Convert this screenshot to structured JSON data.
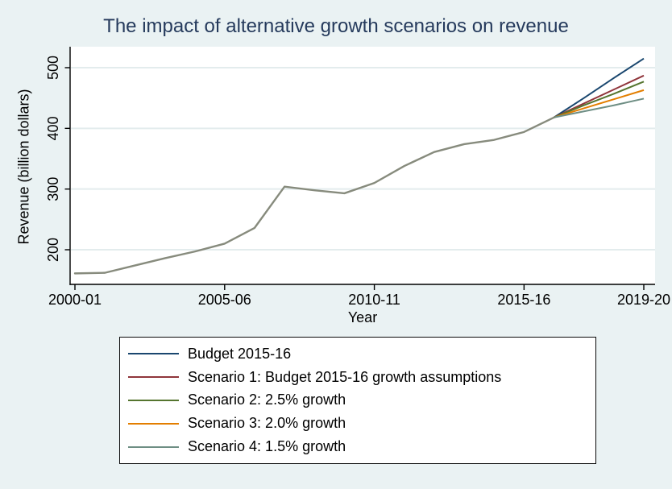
{
  "figure": {
    "background_color": "#eaf2f3",
    "title_color": "#253a5c"
  },
  "chart_data": {
    "type": "line",
    "title": "The impact of alternative growth scenarios on revenue",
    "xlabel": "Year",
    "ylabel": "Revenue (billion dollars)",
    "x_tick_labels": [
      "2000-01",
      "2005-06",
      "2010-11",
      "2015-16",
      "2019-20"
    ],
    "y_ticks": [
      200,
      300,
      400,
      500
    ],
    "ylim": [
      143,
      535
    ],
    "grid": true,
    "grid_color": "#e3eced",
    "legend_position": "below",
    "years": [
      "2000-01",
      "2001-02",
      "2002-03",
      "2003-04",
      "2004-05",
      "2005-06",
      "2006-07",
      "2007-08",
      "2008-09",
      "2009-10",
      "2010-11",
      "2011-12",
      "2012-13",
      "2013-14",
      "2014-15",
      "2015-16",
      "2016-17",
      "2017-18",
      "2018-19",
      "2019-20"
    ],
    "history_note": "All five series share identical values from 2000-01 to 2016-17, then diverge",
    "history_color": "#878b7d",
    "history_years": [
      "2000-01",
      "2001-02",
      "2002-03",
      "2003-04",
      "2004-05",
      "2005-06",
      "2006-07",
      "2007-08",
      "2008-09",
      "2009-10",
      "2010-11",
      "2011-12",
      "2012-13",
      "2013-14",
      "2014-15",
      "2015-16",
      "2016-17"
    ],
    "history_values": [
      161,
      162,
      174,
      186,
      197,
      210,
      236,
      304,
      298,
      293,
      310,
      338,
      361,
      374,
      381,
      394,
      418
    ],
    "projection_years": [
      "2016-17",
      "2017-18",
      "2018-19",
      "2019-20"
    ],
    "series": [
      {
        "name": "Budget 2015-16",
        "color": "#1a476f",
        "projection_values": [
          418,
          450,
          483,
          515
        ]
      },
      {
        "name": "Scenario 1: Budget 2015-16 growth assumptions",
        "color": "#90353b",
        "projection_values": [
          418,
          441,
          464,
          487
        ]
      },
      {
        "name": "Scenario 2: 2.5% growth",
        "color": "#55752f",
        "projection_values": [
          418,
          438,
          457,
          477
        ]
      },
      {
        "name": "Scenario 3: 2.0% growth",
        "color": "#e37e00",
        "projection_values": [
          418,
          433,
          448,
          463
        ]
      },
      {
        "name": "Scenario 4: 1.5% growth",
        "color": "#6e8e84",
        "projection_values": [
          418,
          428,
          438,
          449
        ]
      }
    ]
  }
}
